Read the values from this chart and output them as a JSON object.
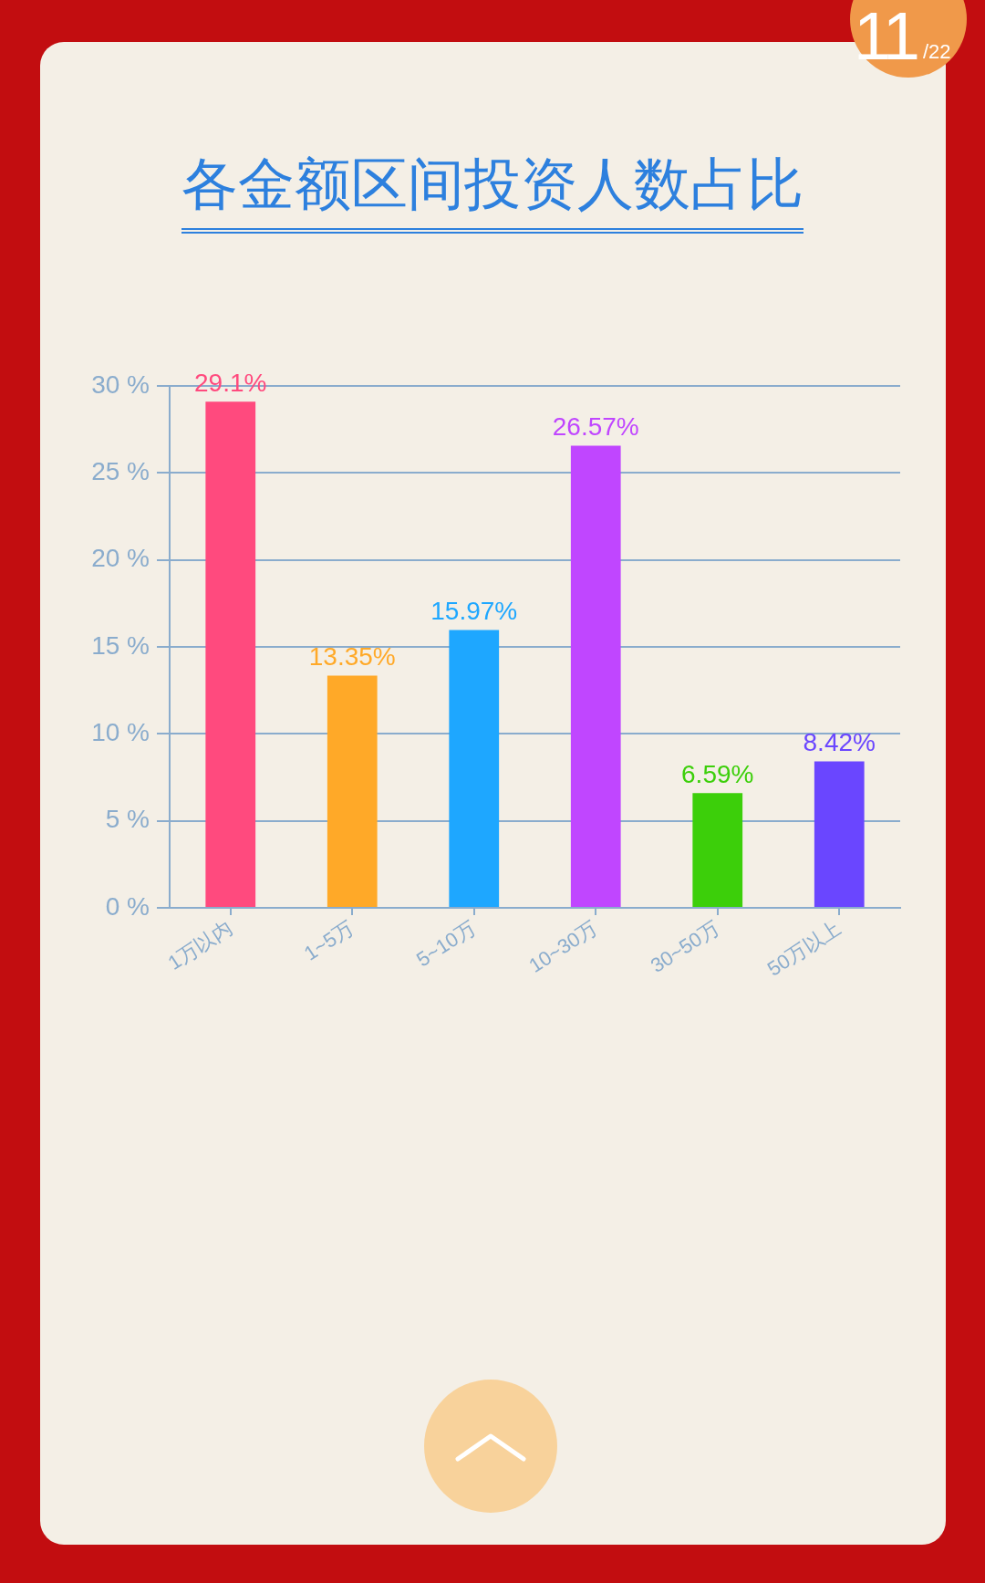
{
  "chart_data": {
    "type": "bar",
    "title": "各金额区间投资人数占比",
    "categories": [
      "1万以内",
      "1~5万",
      "5~10万",
      "10~30万",
      "30~50万",
      "50万以上"
    ],
    "values": [
      29.1,
      13.35,
      15.97,
      26.57,
      6.59,
      8.42
    ],
    "colors": [
      "#ff4a7e",
      "#ffa928",
      "#1ea7ff",
      "#c046ff",
      "#3ccf0a",
      "#6a46ff"
    ],
    "value_labels": [
      "29.1%",
      "13.35%",
      "15.97%",
      "26.57%",
      "6.59%",
      "8.42%"
    ],
    "ylim": [
      0,
      30
    ],
    "yticks": [
      {
        "value": 0,
        "label": "0 %"
      },
      {
        "value": 5,
        "label": "5 %"
      },
      {
        "value": 10,
        "label": "10 %"
      },
      {
        "value": 15,
        "label": "15 %"
      },
      {
        "value": 20,
        "label": "20 %"
      },
      {
        "value": 25,
        "label": "25 %"
      },
      {
        "value": 30,
        "label": "30 %"
      }
    ],
    "grid": "y",
    "annotations": [
      "11",
      "/22"
    ]
  }
}
